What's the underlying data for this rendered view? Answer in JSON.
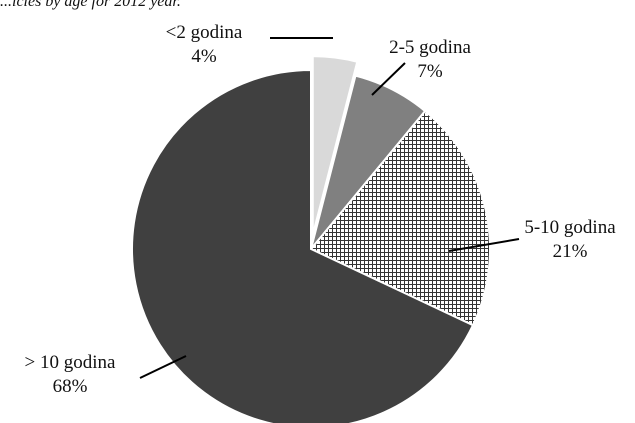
{
  "caption": "...icles by age for 2012 year.",
  "chart_data": {
    "type": "pie",
    "title": "",
    "slices": [
      {
        "label": "<2 godina",
        "value": 4,
        "value_label": "4%",
        "color": "#d9d9d9",
        "fill": "solid",
        "exploded": true
      },
      {
        "label": "2-5 godina",
        "value": 7,
        "value_label": "7%",
        "color": "#808080",
        "fill": "solid",
        "exploded": false
      },
      {
        "label": "5-10 godina",
        "value": 21,
        "value_label": "21%",
        "color": "#595959",
        "fill": "crosshatch",
        "exploded": false
      },
      {
        "label": "> 10 godina",
        "value": 68,
        "value_label": "68%",
        "color": "#404040",
        "fill": "solid",
        "exploded": false
      }
    ],
    "start_angle": "12 o'clock",
    "direction": "clockwise",
    "legend": "none",
    "labels": "outside with leader lines"
  }
}
